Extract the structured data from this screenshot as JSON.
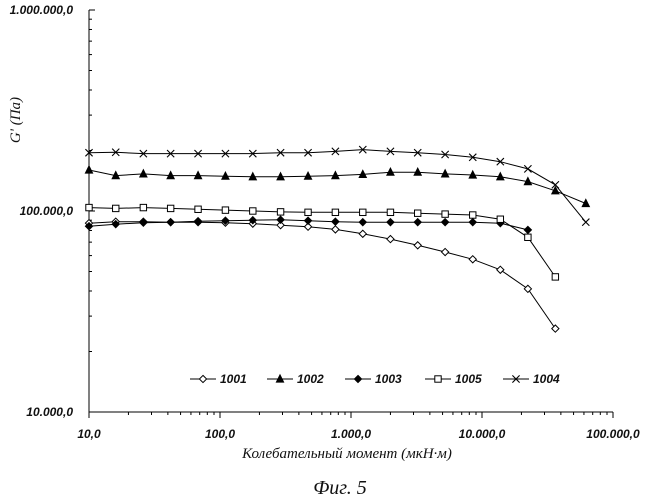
{
  "caption": "Фиг. 5",
  "chart_data": {
    "type": "line",
    "title": "",
    "xlabel": "Колебательный момент (мкН·м)",
    "ylabel": "G' (Па)",
    "xscale": "log",
    "yscale": "log",
    "xlim": [
      10,
      100000
    ],
    "ylim": [
      10000,
      1000000
    ],
    "x_ticks": [
      {
        "value": 10,
        "label": "10,0"
      },
      {
        "value": 100,
        "label": "100,0"
      },
      {
        "value": 1000,
        "label": "1.000,0"
      },
      {
        "value": 10000,
        "label": "10.000,0"
      },
      {
        "value": 100000,
        "label": "100.000,0"
      }
    ],
    "y_ticks": [
      {
        "value": 10000,
        "label": "10.000,0"
      },
      {
        "value": 100000,
        "label": "100.000,0"
      },
      {
        "value": 1000000,
        "label": "1.000.000,0"
      }
    ],
    "legend_position": "bottom-center",
    "series": [
      {
        "name": "1001",
        "marker": "diamond",
        "points": [
          [
            10,
            87000
          ],
          [
            16,
            88500
          ],
          [
            26,
            88500
          ],
          [
            42,
            88000
          ],
          [
            68,
            88000
          ],
          [
            110,
            87500
          ],
          [
            178,
            86500
          ],
          [
            290,
            85000
          ],
          [
            470,
            83500
          ],
          [
            760,
            81000
          ],
          [
            1230,
            77000
          ],
          [
            2000,
            72500
          ],
          [
            3230,
            67500
          ],
          [
            5230,
            62500
          ],
          [
            8500,
            57500
          ],
          [
            13800,
            51000
          ],
          [
            22400,
            41000
          ],
          [
            36300,
            26000
          ]
        ]
      },
      {
        "name": "1002",
        "marker": "triangle",
        "points": [
          [
            10,
            160000
          ],
          [
            16,
            150000
          ],
          [
            26,
            153000
          ],
          [
            42,
            150000
          ],
          [
            68,
            150000
          ],
          [
            110,
            149000
          ],
          [
            178,
            148000
          ],
          [
            290,
            148000
          ],
          [
            470,
            149000
          ],
          [
            760,
            150000
          ],
          [
            1230,
            152000
          ],
          [
            2000,
            156000
          ],
          [
            3230,
            156000
          ],
          [
            5230,
            153000
          ],
          [
            8500,
            151000
          ],
          [
            13800,
            148000
          ],
          [
            22400,
            140000
          ],
          [
            36300,
            126000
          ],
          [
            62000,
            109000
          ]
        ]
      },
      {
        "name": "1003",
        "marker": "filled-diamond",
        "points": [
          [
            10,
            84000
          ],
          [
            16,
            86000
          ],
          [
            26,
            87500
          ],
          [
            42,
            88000
          ],
          [
            68,
            89000
          ],
          [
            110,
            89500
          ],
          [
            178,
            90000
          ],
          [
            290,
            90500
          ],
          [
            470,
            89500
          ],
          [
            760,
            88500
          ],
          [
            1230,
            88000
          ],
          [
            2000,
            88000
          ],
          [
            3230,
            88000
          ],
          [
            5230,
            88000
          ],
          [
            8500,
            88000
          ],
          [
            13800,
            87000
          ],
          [
            22400,
            80500
          ]
        ]
      },
      {
        "name": "1005",
        "marker": "square",
        "points": [
          [
            10,
            104000
          ],
          [
            16,
            103000
          ],
          [
            26,
            104000
          ],
          [
            42,
            103000
          ],
          [
            68,
            102000
          ],
          [
            110,
            101000
          ],
          [
            178,
            100000
          ],
          [
            290,
            99000
          ],
          [
            470,
            98500
          ],
          [
            760,
            98500
          ],
          [
            1230,
            98500
          ],
          [
            2000,
            98500
          ],
          [
            3230,
            97500
          ],
          [
            5230,
            96500
          ],
          [
            8500,
            95500
          ],
          [
            13800,
            91000
          ],
          [
            22400,
            74000
          ],
          [
            36300,
            47000
          ]
        ]
      },
      {
        "name": "1004",
        "marker": "x",
        "points": [
          [
            10,
            195000
          ],
          [
            16,
            196000
          ],
          [
            26,
            193000
          ],
          [
            42,
            193000
          ],
          [
            68,
            193000
          ],
          [
            110,
            193000
          ],
          [
            178,
            193000
          ],
          [
            290,
            195000
          ],
          [
            470,
            195000
          ],
          [
            760,
            198000
          ],
          [
            1230,
            202000
          ],
          [
            2000,
            198000
          ],
          [
            3230,
            195000
          ],
          [
            5230,
            191000
          ],
          [
            8500,
            185000
          ],
          [
            13800,
            176000
          ],
          [
            22400,
            162000
          ],
          [
            36300,
            135000
          ],
          [
            62000,
            88000
          ]
        ]
      }
    ]
  }
}
